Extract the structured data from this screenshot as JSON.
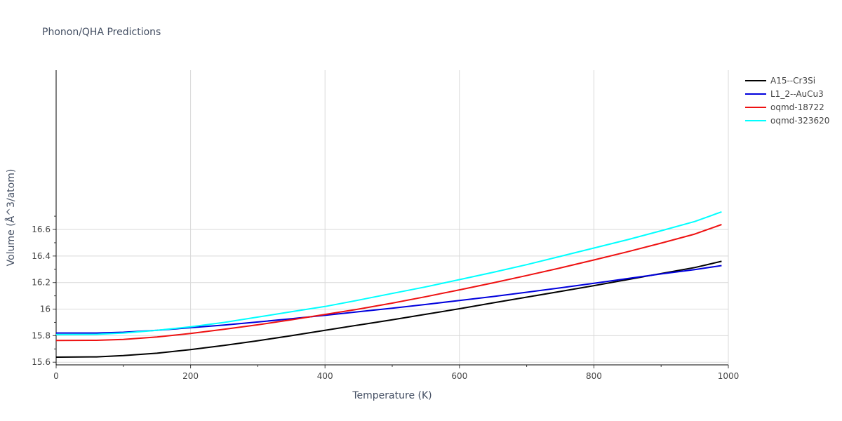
{
  "chart_data": {
    "type": "line",
    "title": "Phonon/QHA Predictions",
    "xlabel": "Temperature (K)",
    "ylabel": "Volume (Å^3/atom)",
    "xlim": [
      0,
      1000
    ],
    "ylim": [
      15.58,
      17.8
    ],
    "x_ticks": [
      0,
      200,
      400,
      600,
      800,
      1000
    ],
    "x_tick_labels": [
      "0",
      "200",
      "400",
      "600",
      "800",
      "1000"
    ],
    "y_ticks": [
      15.6,
      15.8,
      16.0,
      16.2,
      16.4,
      16.6
    ],
    "y_tick_labels": [
      "15.6",
      "15.8",
      "16",
      "16.2",
      "16.4",
      "16.6"
    ],
    "grid": true,
    "legend_position": "top-right",
    "series": [
      {
        "name": "A15--Cr3Si",
        "color": "#000000",
        "points": [
          [
            0,
            15.638
          ],
          [
            60,
            15.64
          ],
          [
            100,
            15.65
          ],
          [
            150,
            15.668
          ],
          [
            200,
            15.695
          ],
          [
            250,
            15.727
          ],
          [
            300,
            15.762
          ],
          [
            350,
            15.8
          ],
          [
            400,
            15.84
          ],
          [
            450,
            15.88
          ],
          [
            500,
            15.92
          ],
          [
            550,
            15.961
          ],
          [
            600,
            16.003
          ],
          [
            650,
            16.047
          ],
          [
            700,
            16.09
          ],
          [
            750,
            16.133
          ],
          [
            800,
            16.177
          ],
          [
            850,
            16.222
          ],
          [
            900,
            16.268
          ],
          [
            950,
            16.313
          ],
          [
            990,
            16.36
          ]
        ]
      },
      {
        "name": "L1_2--AuCu3",
        "color": "#0000dd",
        "points": [
          [
            0,
            15.82
          ],
          [
            60,
            15.82
          ],
          [
            100,
            15.826
          ],
          [
            150,
            15.84
          ],
          [
            200,
            15.86
          ],
          [
            250,
            15.88
          ],
          [
            300,
            15.903
          ],
          [
            350,
            15.928
          ],
          [
            400,
            15.953
          ],
          [
            450,
            15.98
          ],
          [
            500,
            16.007
          ],
          [
            550,
            16.035
          ],
          [
            600,
            16.065
          ],
          [
            650,
            16.095
          ],
          [
            700,
            16.127
          ],
          [
            750,
            16.16
          ],
          [
            800,
            16.194
          ],
          [
            850,
            16.23
          ],
          [
            900,
            16.265
          ],
          [
            950,
            16.298
          ],
          [
            990,
            16.328
          ]
        ]
      },
      {
        "name": "oqmd-18722",
        "color": "#ee1111",
        "points": [
          [
            0,
            15.764
          ],
          [
            60,
            15.765
          ],
          [
            100,
            15.772
          ],
          [
            150,
            15.79
          ],
          [
            200,
            15.817
          ],
          [
            250,
            15.848
          ],
          [
            300,
            15.882
          ],
          [
            350,
            15.92
          ],
          [
            400,
            15.96
          ],
          [
            450,
            16.0
          ],
          [
            500,
            16.045
          ],
          [
            550,
            16.094
          ],
          [
            600,
            16.145
          ],
          [
            650,
            16.198
          ],
          [
            700,
            16.253
          ],
          [
            750,
            16.31
          ],
          [
            800,
            16.37
          ],
          [
            850,
            16.432
          ],
          [
            900,
            16.497
          ],
          [
            950,
            16.565
          ],
          [
            990,
            16.637
          ]
        ]
      },
      {
        "name": "oqmd-323620",
        "color": "#00ffff",
        "points": [
          [
            0,
            15.808
          ],
          [
            60,
            15.81
          ],
          [
            100,
            15.82
          ],
          [
            150,
            15.84
          ],
          [
            200,
            15.867
          ],
          [
            250,
            15.9
          ],
          [
            300,
            15.94
          ],
          [
            350,
            15.98
          ],
          [
            400,
            16.02
          ],
          [
            450,
            16.068
          ],
          [
            500,
            16.118
          ],
          [
            550,
            16.168
          ],
          [
            600,
            16.222
          ],
          [
            650,
            16.277
          ],
          [
            700,
            16.335
          ],
          [
            750,
            16.397
          ],
          [
            800,
            16.46
          ],
          [
            850,
            16.523
          ],
          [
            900,
            16.59
          ],
          [
            950,
            16.66
          ],
          [
            990,
            16.733
          ]
        ]
      }
    ]
  }
}
